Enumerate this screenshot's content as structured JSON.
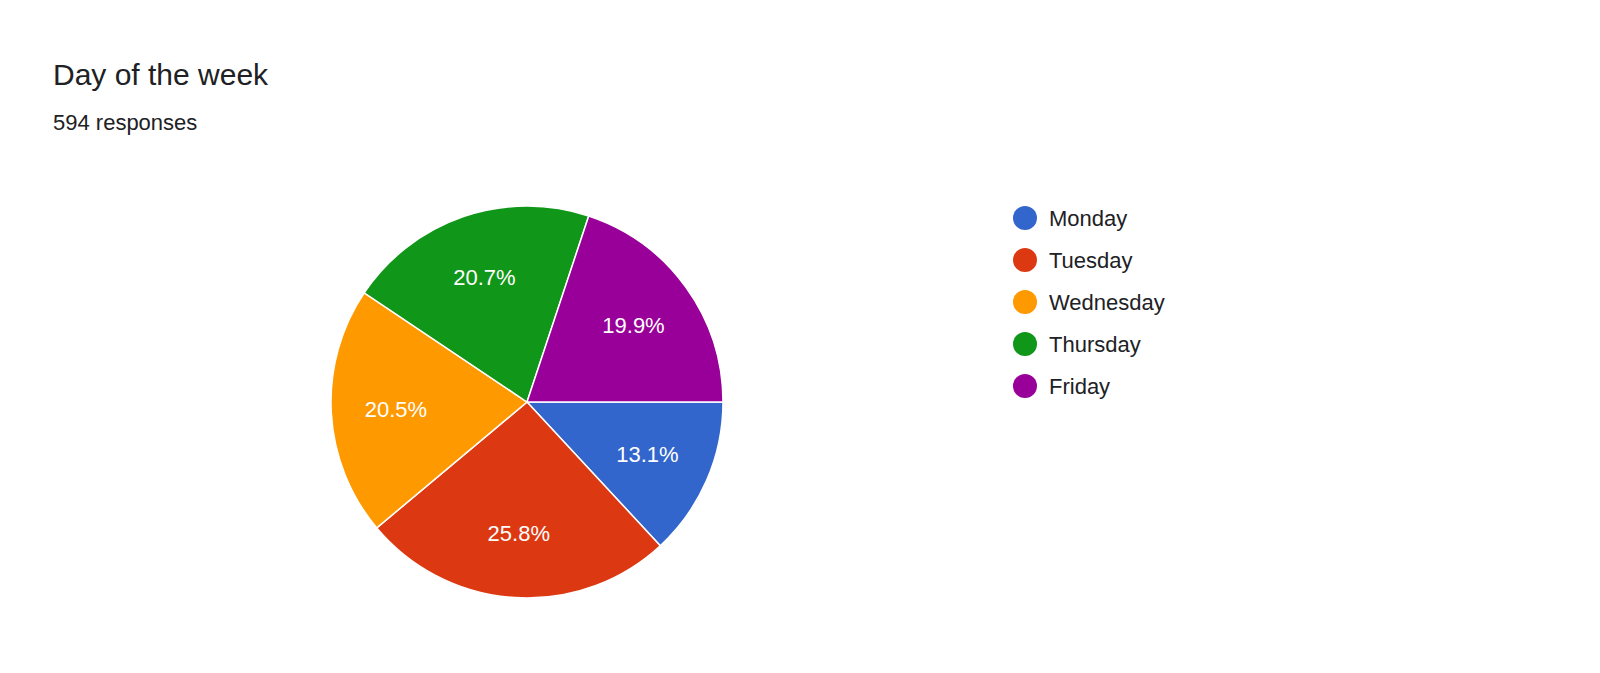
{
  "chart_data": {
    "type": "pie",
    "title": "Day of the week",
    "subtitle": "594 responses",
    "categories": [
      "Monday",
      "Tuesday",
      "Wednesday",
      "Thursday",
      "Friday"
    ],
    "values": [
      13.1,
      25.8,
      20.5,
      20.7,
      19.9
    ],
    "value_labels": [
      "13.1%",
      "25.8%",
      "20.5%",
      "20.7%",
      "19.9%"
    ],
    "colors": [
      "#3366cc",
      "#dc3912",
      "#ff9900",
      "#109618",
      "#990099"
    ],
    "data_labels": true,
    "legend": "right"
  }
}
